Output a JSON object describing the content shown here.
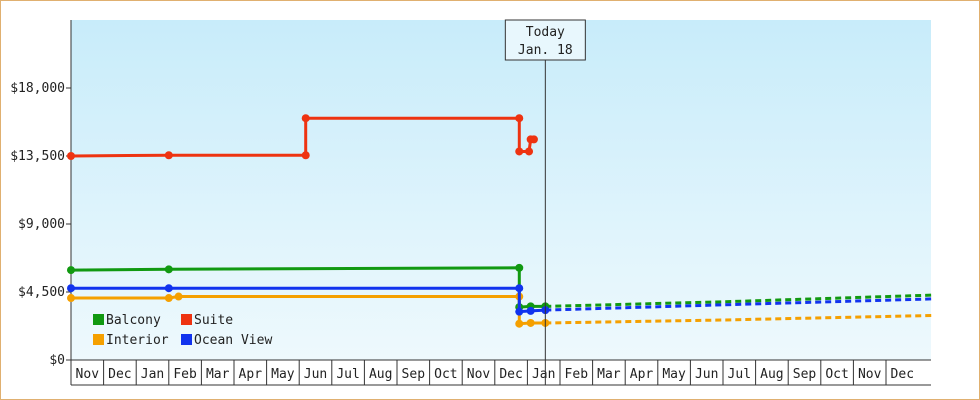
{
  "chart_data": {
    "type": "line",
    "title": "",
    "xlabel": "",
    "ylabel": "",
    "ylim": [
      0,
      22500
    ],
    "y_ticks": [
      {
        "value": 0,
        "label": "$0"
      },
      {
        "value": 4500,
        "label": "$4,500"
      },
      {
        "value": 9000,
        "label": "$9,000"
      },
      {
        "value": 13500,
        "label": "$13,500"
      },
      {
        "value": 18000,
        "label": "$18,000"
      }
    ],
    "x_axis_months": [
      "Nov",
      "Dec",
      "Jan",
      "Feb",
      "Mar",
      "Apr",
      "May",
      "Jun",
      "Jul",
      "Aug",
      "Sep",
      "Oct",
      "Nov",
      "Dec",
      "Jan",
      "Feb",
      "Mar",
      "Apr",
      "May",
      "Jun",
      "Jul",
      "Aug",
      "Sep",
      "Oct",
      "Nov",
      "Dec"
    ],
    "grid": false,
    "legend_position": "bottom-left",
    "today_marker": {
      "line1": "Today",
      "line2": "Jan. 18",
      "month_index": 14.55
    },
    "series": [
      {
        "name": "Balcony",
        "color": "#119911",
        "history": [
          [
            0.0,
            5950
          ],
          [
            3.0,
            6000
          ],
          [
            13.75,
            6100
          ],
          [
            13.75,
            3500
          ],
          [
            14.1,
            3550
          ],
          [
            14.55,
            3550
          ]
        ],
        "forecast": [
          [
            14.55,
            3550
          ],
          [
            20,
            3850
          ],
          [
            26.5,
            4300
          ]
        ]
      },
      {
        "name": "Suite",
        "color": "#ee3311",
        "history": [
          [
            0.0,
            13500
          ],
          [
            3.0,
            13550
          ],
          [
            7.2,
            13550
          ],
          [
            7.2,
            16000
          ],
          [
            13.75,
            16000
          ],
          [
            13.75,
            13800
          ],
          [
            14.05,
            13800
          ],
          [
            14.1,
            14600
          ],
          [
            14.2,
            14600
          ]
        ],
        "forecast": []
      },
      {
        "name": "Interior",
        "color": "#f5a000",
        "history": [
          [
            0.0,
            4100
          ],
          [
            3.0,
            4100
          ],
          [
            3.3,
            4200
          ],
          [
            13.75,
            4200
          ],
          [
            13.75,
            2400
          ],
          [
            14.1,
            2450
          ],
          [
            14.55,
            2450
          ]
        ],
        "forecast": [
          [
            14.55,
            2450
          ],
          [
            20,
            2650
          ],
          [
            26.5,
            2950
          ]
        ]
      },
      {
        "name": "Ocean View",
        "color": "#1133ee",
        "history": [
          [
            0.0,
            4750
          ],
          [
            3.0,
            4750
          ],
          [
            13.75,
            4750
          ],
          [
            13.75,
            3200
          ],
          [
            14.1,
            3250
          ],
          [
            14.55,
            3300
          ]
        ],
        "forecast": [
          [
            14.55,
            3300
          ],
          [
            20,
            3650
          ],
          [
            26.5,
            4050
          ]
        ]
      }
    ]
  }
}
